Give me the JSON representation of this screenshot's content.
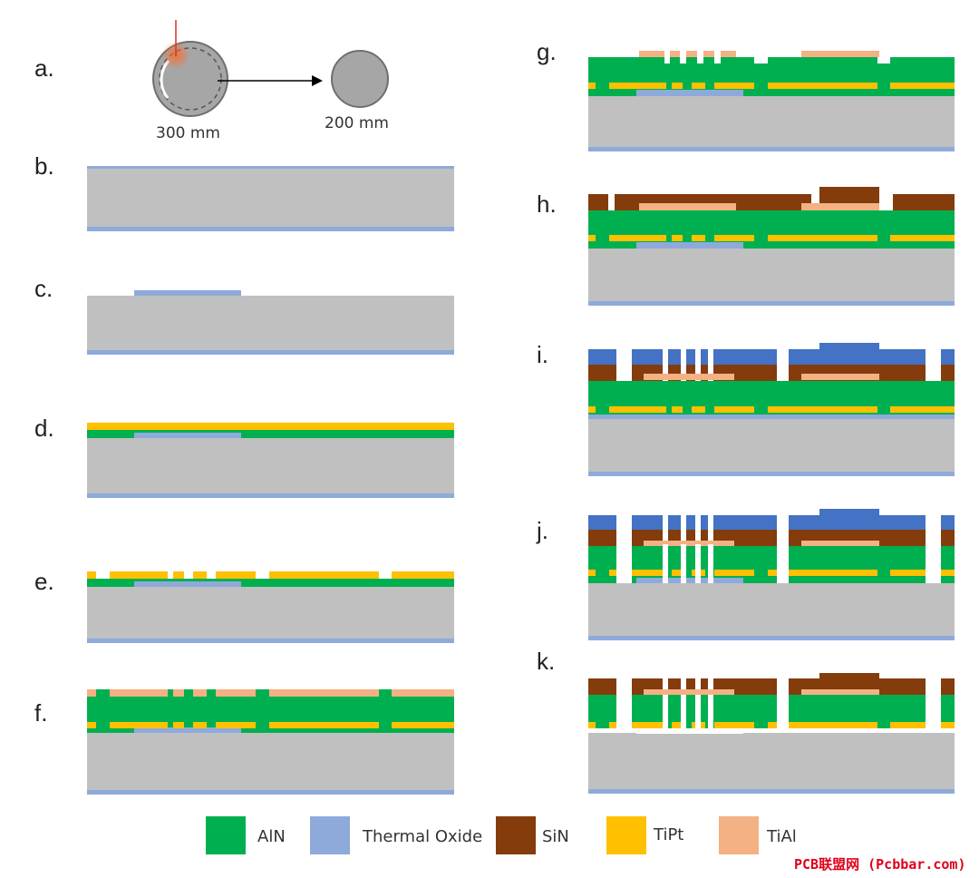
{
  "colors": {
    "substrate": "#c0c0c0",
    "AlN": "#00b050",
    "Thermal Oxide": "#8eaadb",
    "SiN": "#843c0c",
    "TiPt": "#ffc000",
    "TiAl": "#f4b183",
    "SiO2 cap": "#4472c4",
    "wafer": "#a6a6a6"
  },
  "step_a": {
    "label": "a.",
    "from_size": "300 mm",
    "to_size": "200 mm"
  },
  "steps": [
    {
      "label": "b."
    },
    {
      "label": "c."
    },
    {
      "label": "d."
    },
    {
      "label": "e."
    },
    {
      "label": "f."
    },
    {
      "label": "g."
    },
    {
      "label": "h."
    },
    {
      "label": "i."
    },
    {
      "label": "j."
    },
    {
      "label": "k."
    }
  ],
  "legend": [
    {
      "name": "AlN",
      "color": "#00b050"
    },
    {
      "name": "Thermal Oxide",
      "color": "#8eaadb"
    },
    {
      "name": "SiN",
      "color": "#843c0c"
    },
    {
      "name": "TiPt",
      "color": "#ffc000"
    },
    {
      "name": "TiAl",
      "color": "#f4b183"
    }
  ],
  "watermark": "PCB联盟网 (Pcbbar.com)"
}
